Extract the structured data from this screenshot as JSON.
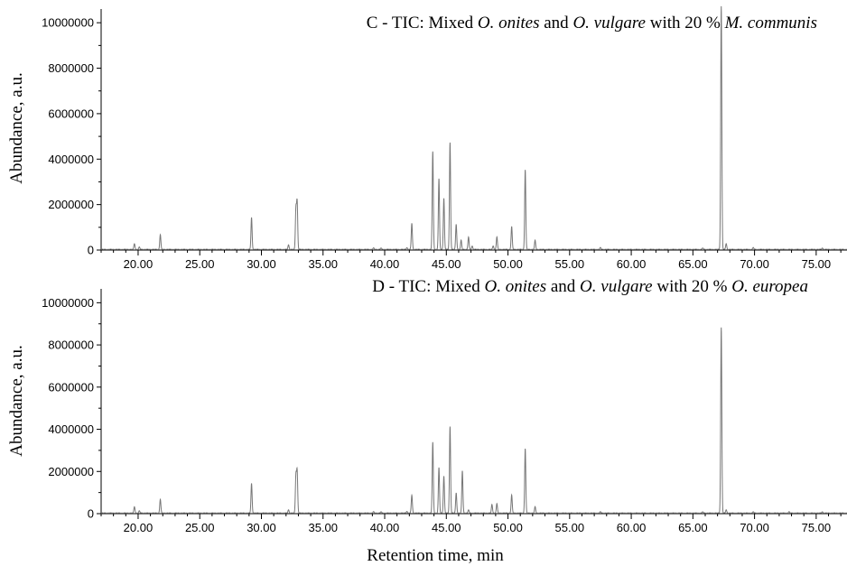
{
  "chart_data": [
    {
      "type": "line",
      "title": {
        "prefix": "C - TIC: Mixed ",
        "sp1": "O. onites",
        "mid": " and ",
        "sp2": "O. vulgare",
        "mid2": " with 20 % ",
        "sp3": "M. communis"
      },
      "ylabel": "Abundance, a.u.",
      "xlabel": "",
      "xlim": [
        17,
        77.5
      ],
      "ylim": [
        0,
        11000000
      ],
      "x_ticks": [
        "20.00",
        "25.00",
        "30.00",
        "35.00",
        "40.00",
        "45.00",
        "50.00",
        "55.00",
        "60.00",
        "65.00",
        "70.00",
        "75.00"
      ],
      "y_ticks": [
        "0",
        "2000000",
        "4000000",
        "6000000",
        "8000000",
        "10000000"
      ],
      "series": [
        {
          "color": "#777777",
          "peaks": [
            [
              19.7,
              250000
            ],
            [
              20.1,
              100000
            ],
            [
              21.8,
              650000
            ],
            [
              29.2,
              1400000
            ],
            [
              32.2,
              200000
            ],
            [
              32.8,
              1750000
            ],
            [
              32.9,
              2050000
            ],
            [
              39.1,
              60000
            ],
            [
              39.7,
              60000
            ],
            [
              41.8,
              80000
            ],
            [
              42.2,
              1150000
            ],
            [
              43.9,
              4300000
            ],
            [
              44.4,
              3100000
            ],
            [
              44.8,
              2250000
            ],
            [
              45.3,
              4700000
            ],
            [
              45.8,
              1100000
            ],
            [
              46.2,
              400000
            ],
            [
              46.8,
              550000
            ],
            [
              47.1,
              150000
            ],
            [
              48.8,
              150000
            ],
            [
              49.1,
              550000
            ],
            [
              50.3,
              1000000
            ],
            [
              51.4,
              3500000
            ],
            [
              52.2,
              400000
            ],
            [
              57.5,
              80000
            ],
            [
              65.8,
              60000
            ],
            [
              67.3,
              10700000
            ],
            [
              67.7,
              250000
            ],
            [
              69.9,
              80000
            ],
            [
              75.5,
              60000
            ]
          ]
        }
      ]
    },
    {
      "type": "line",
      "title": {
        "prefix": "D - TIC: Mixed ",
        "sp1": "O. onites",
        "mid": " and ",
        "sp2": "O. vulgare",
        "mid2": " with 20 % ",
        "sp3": "O. europea"
      },
      "ylabel": "Abundance, a.u.",
      "xlabel": "Retention time, min",
      "xlim": [
        17,
        77.5
      ],
      "ylim": [
        0,
        11000000
      ],
      "x_ticks": [
        "20.00",
        "25.00",
        "30.00",
        "35.00",
        "40.00",
        "45.00",
        "50.00",
        "55.00",
        "60.00",
        "65.00",
        "70.00",
        "75.00"
      ],
      "y_ticks": [
        "0",
        "2000000",
        "4000000",
        "6000000",
        "8000000",
        "10000000"
      ],
      "series": [
        {
          "color": "#777777",
          "peaks": [
            [
              19.7,
              300000
            ],
            [
              20.1,
              100000
            ],
            [
              21.8,
              650000
            ],
            [
              29.2,
              1400000
            ],
            [
              32.2,
              150000
            ],
            [
              32.8,
              1750000
            ],
            [
              32.9,
              1950000
            ],
            [
              39.1,
              60000
            ],
            [
              39.7,
              60000
            ],
            [
              41.8,
              80000
            ],
            [
              42.2,
              850000
            ],
            [
              43.9,
              3350000
            ],
            [
              44.4,
              2150000
            ],
            [
              44.8,
              1750000
            ],
            [
              45.3,
              4100000
            ],
            [
              45.8,
              950000
            ],
            [
              46.3,
              2000000
            ],
            [
              46.8,
              150000
            ],
            [
              48.7,
              400000
            ],
            [
              49.1,
              450000
            ],
            [
              50.3,
              850000
            ],
            [
              51.4,
              3050000
            ],
            [
              52.2,
              300000
            ],
            [
              57.5,
              60000
            ],
            [
              65.8,
              60000
            ],
            [
              67.3,
              8800000
            ],
            [
              67.7,
              150000
            ],
            [
              69.9,
              60000
            ],
            [
              72.8,
              60000
            ],
            [
              75.5,
              60000
            ]
          ]
        }
      ]
    }
  ]
}
